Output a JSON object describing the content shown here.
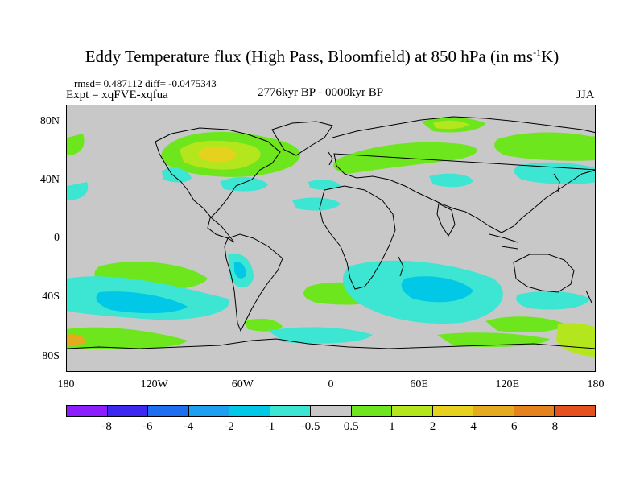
{
  "title": {
    "main": "Eddy Temperature flux (High Pass, Bloomfield) at 850 hPa (in ms",
    "sup": "-1",
    "unit_tail": "K)"
  },
  "stats": "rmsd= 0.487112 diff= -0.0475343",
  "expt": "Expt = xqFVE-xqfua",
  "period": "2776kyr BP - 0000kyr BP",
  "season": "JJA",
  "lat_labels": [
    "80N",
    "40N",
    "0",
    "40S",
    "80S"
  ],
  "lon_labels": [
    "180",
    "120W",
    "60W",
    "0",
    "60E",
    "120E",
    "180"
  ],
  "colorbar": {
    "colors": [
      "#8c1eff",
      "#3c28f0",
      "#1e6ef0",
      "#1ea0f0",
      "#00c8e6",
      "#3ce6d2",
      "#c8c8c8",
      "#6ee61e",
      "#b4e61e",
      "#e6d21e",
      "#e6aa1e",
      "#e6821e",
      "#e6501e"
    ],
    "labels": [
      "-8",
      "-6",
      "-4",
      "-2",
      "-1",
      "-0.5",
      "0.5",
      "1",
      "2",
      "4",
      "6",
      "8"
    ]
  },
  "map_colors": {
    "ocean_neutral": "#c8c8c8",
    "pos1": "#6ee61e",
    "pos2": "#b4e61e",
    "pos3": "#e6d21e",
    "pos4": "#e6aa1e",
    "neg1": "#3ce6d2",
    "neg2": "#00c8e6",
    "neg3": "#1ea0f0"
  }
}
